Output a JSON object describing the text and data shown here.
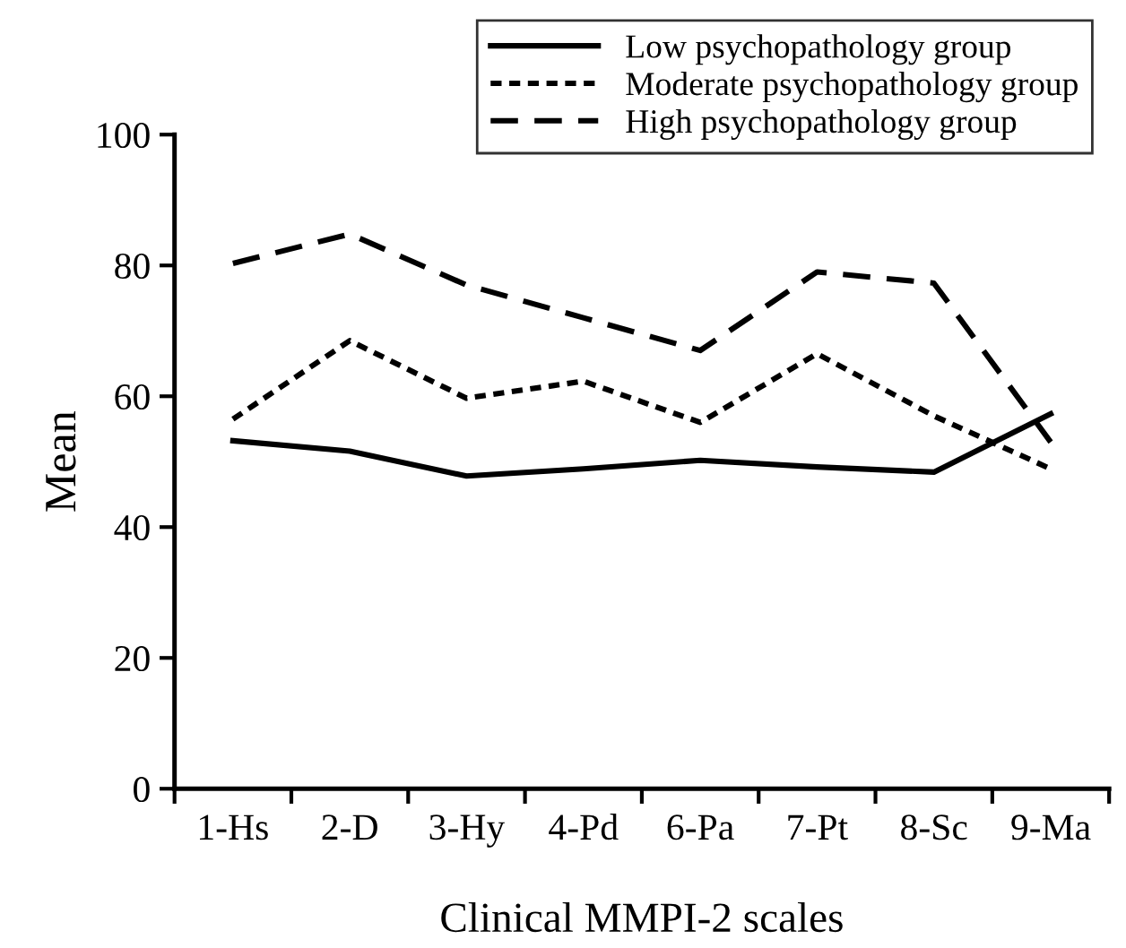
{
  "chart_data": {
    "type": "line",
    "xlabel": "Clinical MMPI-2 scales",
    "ylabel": "Mean",
    "categories": [
      "1-Hs",
      "2-D",
      "3-Hy",
      "4-Pd",
      "6-Pa",
      "7-Pt",
      "8-Sc",
      "9-Ma"
    ],
    "series": [
      {
        "name": "Low psychopathology group",
        "color": "#000000",
        "line_style": "solid",
        "values": [
          53.2,
          51.6,
          47.8,
          48.9,
          50.2,
          49.2,
          48.4,
          57.3
        ]
      },
      {
        "name": "Moderate psychopathology group",
        "color": "#000000",
        "line_style": "dotted",
        "values": [
          56.5,
          68.5,
          59.7,
          62.3,
          56.0,
          66.5,
          57.0,
          48.9
        ]
      },
      {
        "name": "High psychopathology group",
        "color": "#000000",
        "line_style": "dashed",
        "values": [
          80.3,
          84.8,
          77.0,
          72.0,
          67.0,
          79.0,
          77.3,
          53.0
        ]
      }
    ],
    "ylim": [
      0,
      100
    ],
    "yticks": [
      0,
      20,
      40,
      60,
      80,
      100
    ],
    "grid": false,
    "legend": "top right",
    "marker": "none"
  }
}
